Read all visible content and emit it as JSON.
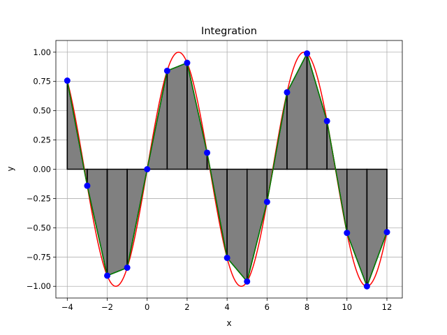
{
  "chart_data": {
    "type": "line",
    "title": "Integration",
    "xlabel": "x",
    "ylabel": "y",
    "xlim": [
      -4.57,
      12.77
    ],
    "ylim": [
      -1.1,
      1.1
    ],
    "xticks": [
      -4,
      -2,
      0,
      2,
      4,
      6,
      8,
      10,
      12
    ],
    "xtick_labels": [
      "−4",
      "−2",
      "0",
      "2",
      "4",
      "6",
      "8",
      "10",
      "12"
    ],
    "yticks": [
      -1.0,
      -0.75,
      -0.5,
      -0.25,
      0.0,
      0.25,
      0.5,
      0.75,
      1.0
    ],
    "ytick_labels": [
      "−1.00",
      "−0.75",
      "−0.50",
      "−0.25",
      "0.00",
      "0.25",
      "0.50",
      "0.75",
      "1.00"
    ],
    "grid": true,
    "function_curve": {
      "function": "sin(x)",
      "x_range": [
        -4,
        12
      ],
      "color": "#ff0000"
    },
    "sample_points": {
      "x": [
        -4,
        -3,
        -2,
        -1,
        0,
        1,
        2,
        3,
        4,
        5,
        6,
        7,
        8,
        9,
        10,
        11,
        12
      ],
      "y": [
        0.757,
        -0.141,
        -0.909,
        -0.841,
        0.0,
        0.841,
        0.909,
        0.141,
        -0.757,
        -0.959,
        -0.279,
        0.657,
        0.989,
        0.412,
        -0.544,
        -1.0,
        -0.537
      ],
      "marker_color": "#0000ff"
    },
    "trapezoid_line_color": "#008000",
    "fill_color": "#808080",
    "divider_color": "#000000"
  }
}
